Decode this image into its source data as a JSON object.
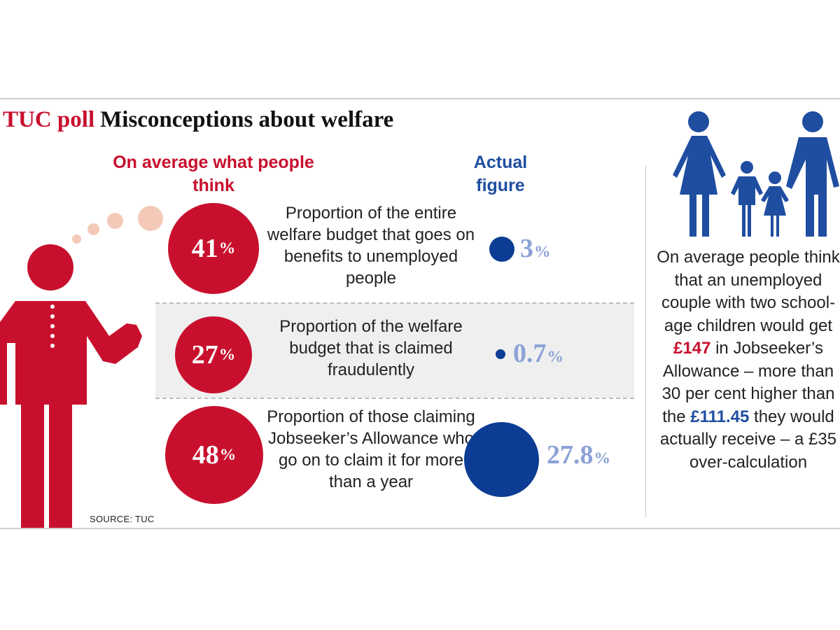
{
  "title": {
    "kicker": "TUC poll",
    "main": "Misconceptions about welfare"
  },
  "headers": {
    "think": "On average what people think",
    "actual": "Actual figure"
  },
  "chart_data": {
    "type": "bubble",
    "title": "TUC poll Misconceptions about welfare",
    "series": [
      {
        "name": "On average what people think",
        "color": "#c8102e"
      },
      {
        "name": "Actual figure",
        "color": "#0c3c94"
      }
    ],
    "rows": [
      {
        "description": "Proportion of the entire welfare budget that goes on benefits to unemployed people",
        "perceived": 41,
        "perceived_label": "41",
        "actual": 3,
        "actual_label": "3"
      },
      {
        "description": "Proportion of the welfare budget that is claimed fraudulently",
        "perceived": 27,
        "perceived_label": "27",
        "actual": 0.7,
        "actual_label": "0.7"
      },
      {
        "description": "Proportion of those claiming Jobseeker’s Allowance who go on to claim it for more than a year",
        "perceived": 48,
        "perceived_label": "48",
        "actual": 27.8,
        "actual_label": "27.8"
      }
    ],
    "unit": "%"
  },
  "side": {
    "text_before": "On average people think that an unemployed couple with two school-age children would get ",
    "amount_perceived": "£147",
    "text_middle": " in Jobseeker’s Allowance – more than 30 per cent higher than the ",
    "amount_actual": "£111.45",
    "text_after": " they would actually receive – a £35 over-calculation"
  },
  "source": "SOURCE: TUC",
  "icons": {
    "person": "person-icon",
    "family": "family-icon"
  },
  "colors": {
    "red": "#c8102e",
    "blue": "#0c3c94",
    "light_blue": "#8ca2d6",
    "thought": "#f4c9b8"
  }
}
